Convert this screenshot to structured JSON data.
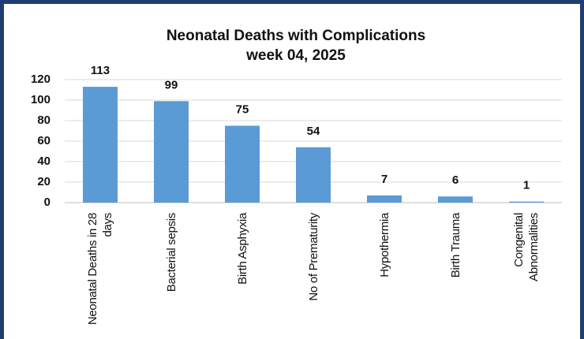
{
  "chart_data": {
    "type": "bar",
    "title": "Neonatal Deaths with Complications week 04, 2025",
    "categories": [
      "Neonatal Deaths in 28 days",
      "Bacterial sepsis",
      "Birth Asphyxia",
      "No of Prematurity",
      "Hypothermia",
      "Birth Trauma",
      "Congenital Abnormalities"
    ],
    "values": [
      113,
      99,
      75,
      54,
      7,
      6,
      1
    ],
    "color": "#5b9bd5",
    "ylim": [
      0,
      120
    ],
    "yticks": [
      0,
      20,
      40,
      60,
      80,
      100,
      120
    ],
    "grid": true
  }
}
